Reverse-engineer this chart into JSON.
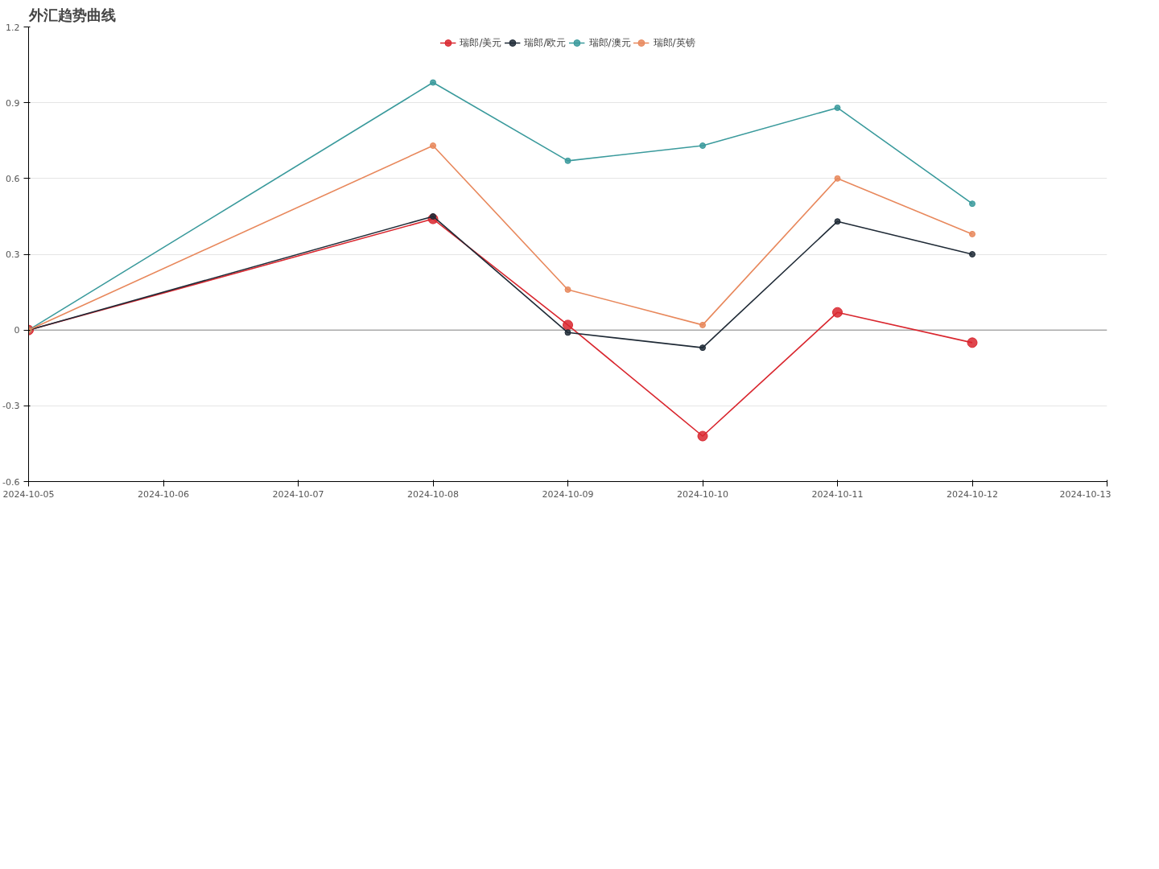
{
  "chart_data": {
    "type": "line",
    "title": "外汇趋势曲线",
    "x": [
      "2024-10-05",
      "2024-10-08",
      "2024-10-09",
      "2024-10-10",
      "2024-10-11",
      "2024-10-12"
    ],
    "series": [
      {
        "name": "瑞郎/美元",
        "color": "#d9262e",
        "values": [
          0,
          0.44,
          0.02,
          -0.42,
          0.07,
          -0.05
        ]
      },
      {
        "name": "瑞郎/欧元",
        "color": "#1f2a36",
        "values": [
          0,
          0.45,
          -0.01,
          -0.07,
          0.43,
          0.3
        ]
      },
      {
        "name": "瑞郎/澳元",
        "color": "#3a9a9c",
        "values": [
          0,
          0.98,
          0.67,
          0.73,
          0.88,
          0.5
        ]
      },
      {
        "name": "瑞郎/英镑",
        "color": "#e8885c",
        "values": [
          0,
          0.73,
          0.16,
          0.02,
          0.6,
          0.38
        ]
      }
    ],
    "xlim": [
      "2024-10-05",
      "2024-10-13"
    ],
    "xticks": [
      "2024-10-05",
      "2024-10-06",
      "2024-10-07",
      "2024-10-08",
      "2024-10-09",
      "2024-10-10",
      "2024-10-11",
      "2024-10-12",
      "2024-10-13"
    ],
    "ylim": [
      -0.6,
      1.2
    ],
    "yticks": [
      -0.6,
      -0.3,
      0,
      0.3,
      0.6,
      0.9,
      1.2
    ],
    "grid": "y",
    "legend": "top",
    "marker": "circle",
    "line_style": "solid"
  }
}
